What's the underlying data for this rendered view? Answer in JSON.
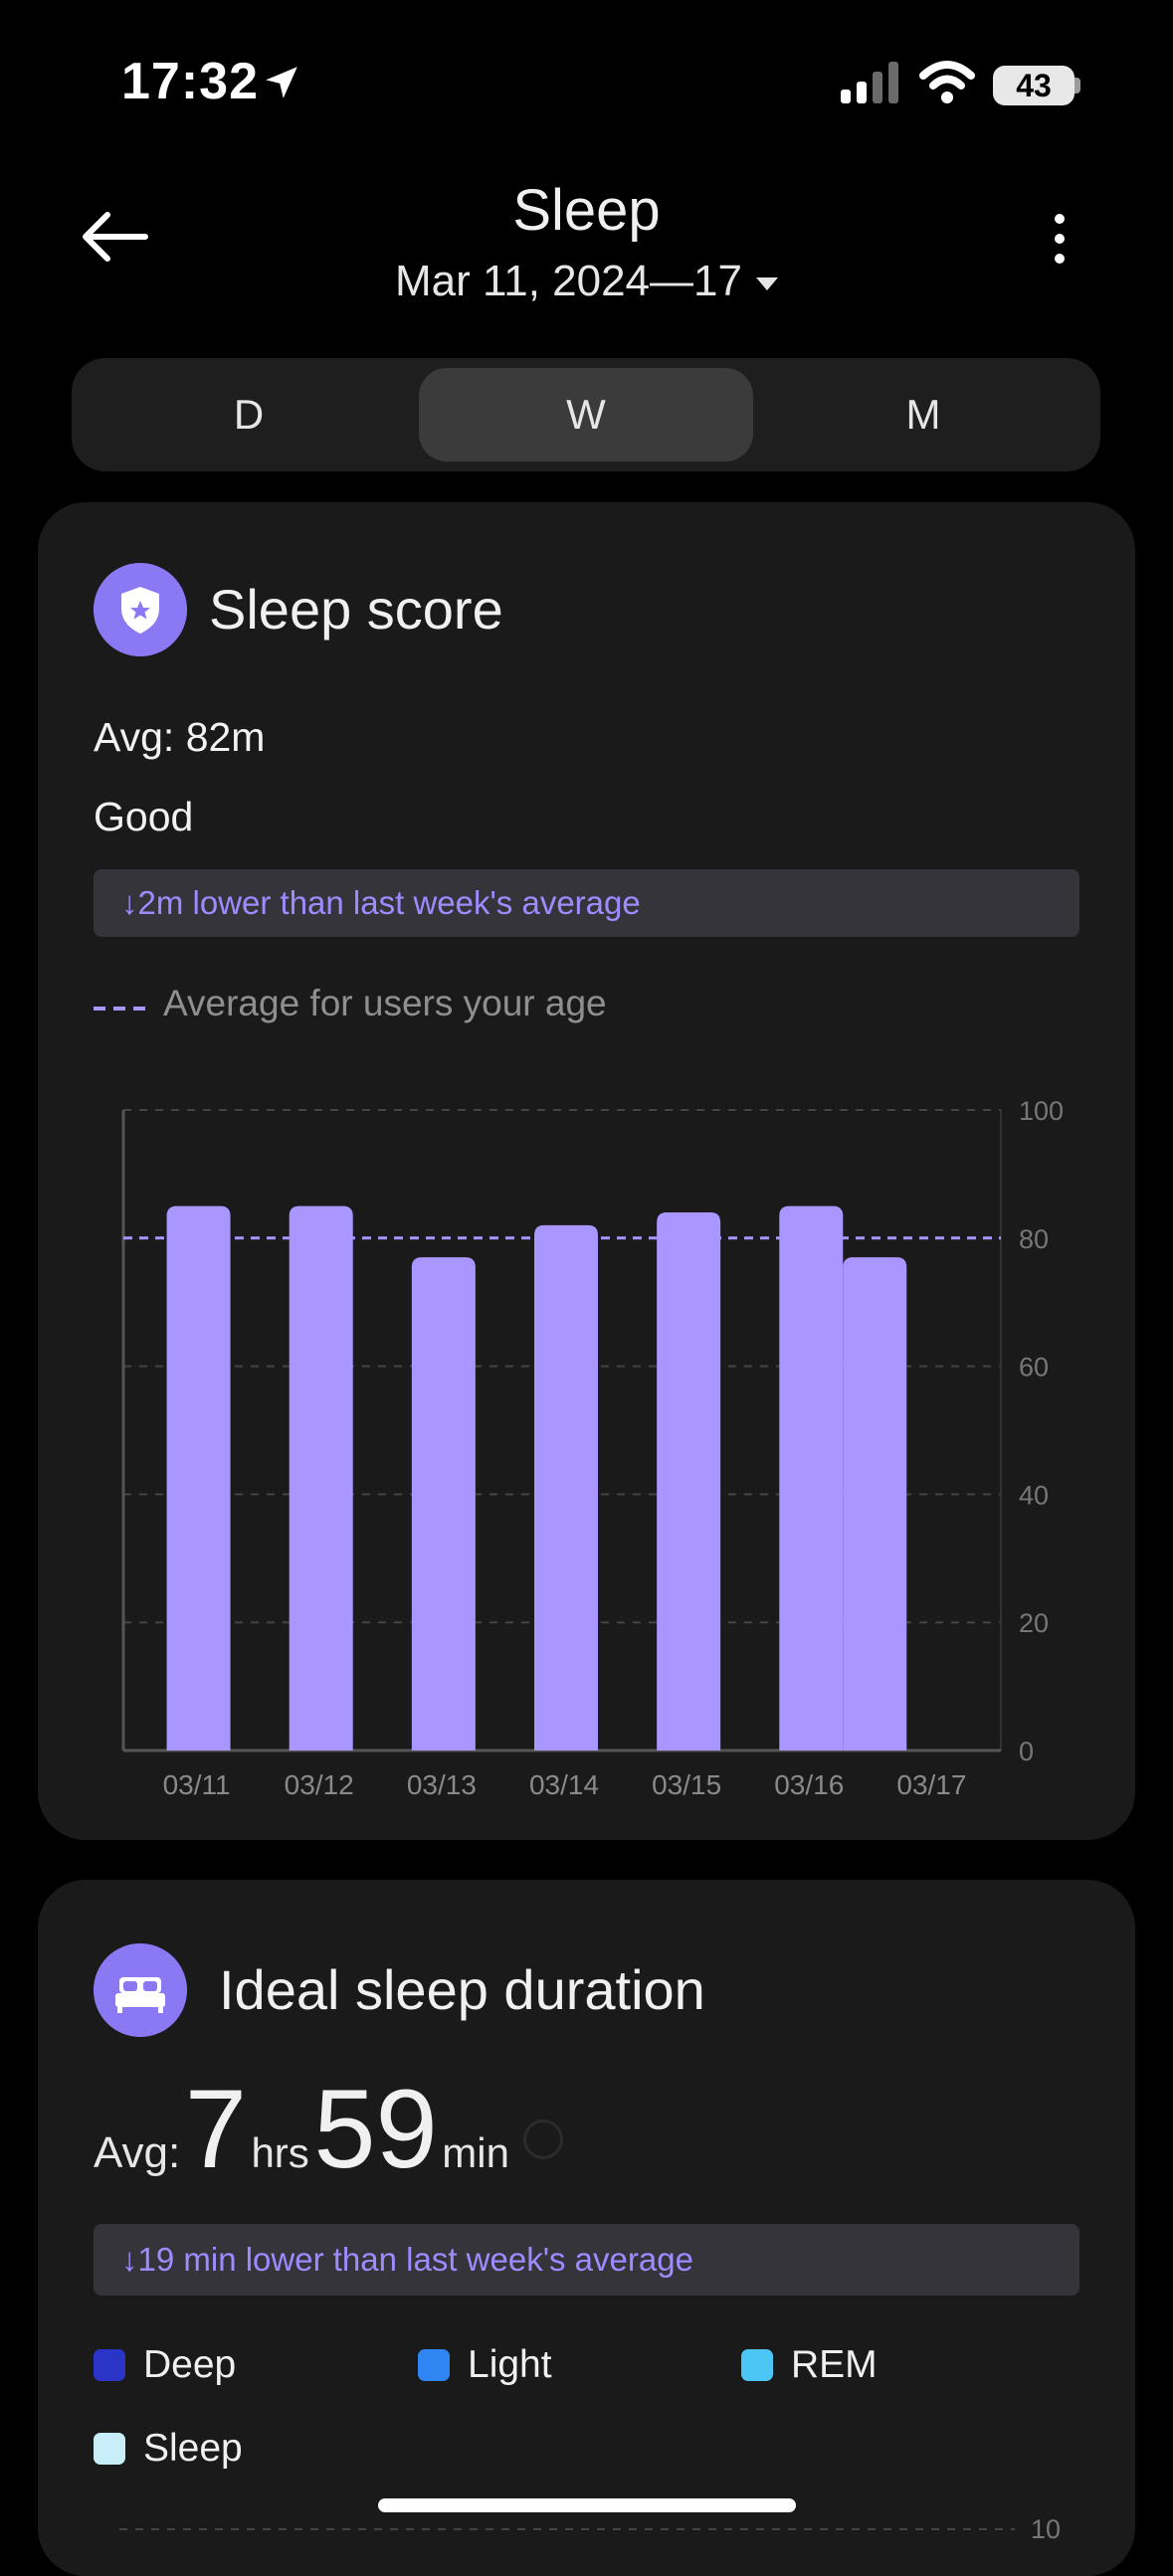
{
  "status_bar": {
    "time": "17:32",
    "battery": "43"
  },
  "header": {
    "title": "Sleep",
    "date_range": "Mar 11, 2024—17"
  },
  "tabs": [
    {
      "label": "D"
    },
    {
      "label": "W"
    },
    {
      "label": "M"
    }
  ],
  "active_tab": "W",
  "sleep_score": {
    "title": "Sleep score",
    "avg": "Avg: 82m",
    "rating": "Good",
    "comparison": "2m lower than last week's average",
    "legend": "Average for users your age",
    "accent_color": "#a996ff",
    "chart_data": {
      "type": "bar",
      "categories": [
        "03/11",
        "03/12",
        "03/13",
        "03/14",
        "03/15",
        "03/16",
        "03/17"
      ],
      "series": [
        {
          "values": [
            85,
            85,
            77,
            82,
            84,
            85,
            77
          ]
        }
      ],
      "reference_line": 80,
      "y_ticks": [
        "100",
        "80",
        "60",
        "40",
        "20",
        "0"
      ],
      "ylim": [
        0,
        100
      ],
      "grid": true
    }
  },
  "ideal_sleep": {
    "title": "Ideal sleep duration",
    "avg_label": "Avg:",
    "hours": "7",
    "hours_unit": "hrs",
    "minutes": "59",
    "minutes_unit": "min",
    "comparison": "19 min lower than last week's average",
    "legend": [
      {
        "label": "Deep",
        "color": "#2a35c8"
      },
      {
        "label": "Light",
        "color": "#2f86f2"
      },
      {
        "label": "REM",
        "color": "#4cc6f5"
      },
      {
        "label": "Sleep",
        "color": "#c8eefa"
      }
    ],
    "y_top_tick": "10"
  }
}
